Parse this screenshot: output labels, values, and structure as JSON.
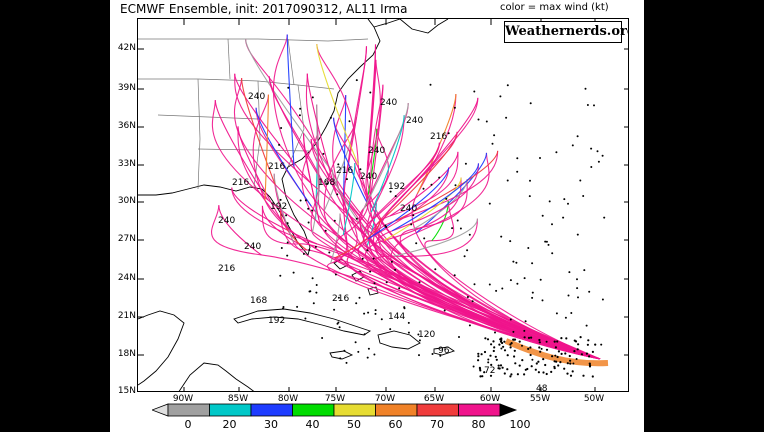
{
  "title": "ECMWF Ensemble, init: 2017090312, AL11 Irma",
  "legend_caption": "color = max wind (kt)",
  "source_badge": "Weathernerds.org",
  "lat_labels": [
    "42N",
    "39N",
    "36N",
    "33N",
    "30N",
    "27N",
    "24N",
    "21N",
    "18N",
    "15N"
  ],
  "lon_labels": [
    "90W",
    "85W",
    "80W",
    "75W",
    "70W",
    "65W",
    "60W",
    "55W",
    "50W"
  ],
  "colorbar": {
    "ticks": [
      "0",
      "20",
      "30",
      "40",
      "50",
      "60",
      "70",
      "80",
      "100"
    ],
    "bins": [
      {
        "label": "0-20",
        "color": "#a0a0a0"
      },
      {
        "label": "20-30",
        "color": "#00c8c8"
      },
      {
        "label": "30-40",
        "color": "#1e3cff"
      },
      {
        "label": "40-50",
        "color": "#00dc00"
      },
      {
        "label": "50-60",
        "color": "#e6dc32"
      },
      {
        "label": "60-70",
        "color": "#f08228"
      },
      {
        "label": "70-80",
        "color": "#f03c3c"
      },
      {
        "label": "80-100",
        "color": "#f0148c"
      },
      {
        "label": "100+",
        "color": "#000000"
      }
    ]
  },
  "map_annotations": [
    "240",
    "240",
    "216",
    "240",
    "216",
    "240",
    "192",
    "240",
    "216",
    "192",
    "168",
    "216",
    "240",
    "216",
    "240",
    "240",
    "216",
    "192",
    "168",
    "144",
    "120",
    "96",
    "72",
    "48"
  ],
  "colors": {
    "coast": "#000000",
    "border": "#666666",
    "grid": "#000000"
  }
}
